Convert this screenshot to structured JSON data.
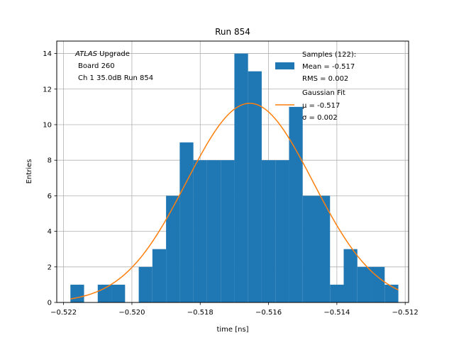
{
  "chart_data": {
    "type": "histogram",
    "title": "Run 854",
    "xlabel": "time [ns]",
    "ylabel": "Entries",
    "xlim": [
      -0.5222,
      -0.5119
    ],
    "ylim": [
      0,
      14.7
    ],
    "grid": true,
    "x_ticks": [
      -0.522,
      -0.52,
      -0.518,
      -0.516,
      -0.514,
      -0.512
    ],
    "x_tick_labels": [
      "−0.522",
      "−0.520",
      "−0.518",
      "−0.516",
      "−0.514",
      "−0.512"
    ],
    "y_ticks": [
      0,
      2,
      4,
      6,
      8,
      10,
      12,
      14
    ],
    "y_tick_labels": [
      "0",
      "2",
      "4",
      "6",
      "8",
      "10",
      "12",
      "14"
    ],
    "bin_edges": [
      -0.5218,
      -0.5214,
      -0.521,
      -0.5206,
      -0.5202,
      -0.5198,
      -0.5194,
      -0.519,
      -0.5186,
      -0.5182,
      -0.5178,
      -0.5174,
      -0.517,
      -0.5166,
      -0.5162,
      -0.5158,
      -0.5154,
      -0.515,
      -0.5146,
      -0.5142,
      -0.5138,
      -0.5134,
      -0.513,
      -0.5126,
      -0.5122
    ],
    "counts": [
      1,
      0,
      1,
      1,
      0,
      2,
      3,
      6,
      9,
      8,
      8,
      8,
      14,
      13,
      8,
      8,
      11,
      6,
      6,
      1,
      3,
      2,
      2,
      1
    ],
    "bar_color": "#1f77b4",
    "fit": {
      "label": "Gaussian Fit",
      "mu_text": "μ = -0.517",
      "sigma_text": "σ = 0.002",
      "mu": -0.51655,
      "sigma": 0.00185,
      "amplitude": 11.2,
      "x_range": [
        -0.5218,
        -0.5122
      ],
      "color": "#ff7f0e"
    },
    "legend": {
      "placement": "top-right",
      "samples_label": "Samples (122):",
      "mean_text": "Mean = -0.517",
      "rms_text": "RMS = 0.002"
    },
    "annotation": {
      "italic_part": "ATLAS",
      "upright_part": " Upgrade",
      "line2": "Board 260",
      "line3": "Ch 1 35.0dB  Run 854"
    }
  }
}
